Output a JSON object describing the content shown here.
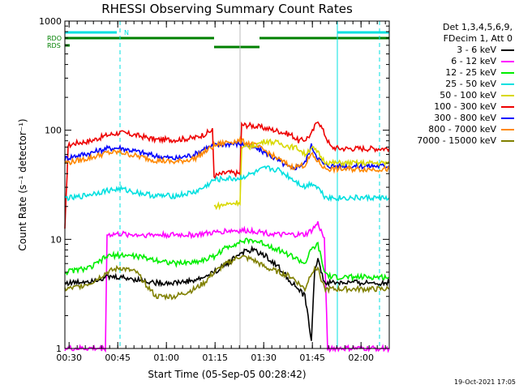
{
  "chart_data": {
    "type": "line",
    "title": "RHESSI Observing Summary Count Rates",
    "xlabel": "Start Time (05-Sep-05 00:28:42)",
    "ylabel": "Count Rate (s⁻¹ detector⁻¹)",
    "y_scale": "log",
    "ylim": [
      1,
      1000
    ],
    "xlim_minutes": [
      0,
      139
    ],
    "x_ticks": [
      {
        "label": "00:30",
        "minute": 1.3
      },
      {
        "label": "00:45",
        "minute": 16.3
      },
      {
        "label": "01:00",
        "minute": 31.3
      },
      {
        "label": "01:15",
        "minute": 46.3
      },
      {
        "label": "01:30",
        "minute": 61.3
      },
      {
        "label": "01:45",
        "minute": 76.3
      },
      {
        "label": "02:00",
        "minute": 91.3
      }
    ],
    "y_ticks": [
      {
        "label": "1",
        "value": 1
      },
      {
        "label": "10",
        "value": 10
      },
      {
        "label": "100",
        "value": 100
      },
      {
        "label": "1000",
        "value": 1000
      }
    ],
    "legend_header": [
      "Det 1,3,4,5,6,9,",
      "FDecim 1, Att 0"
    ],
    "legend": [
      {
        "label": "3 - 6 keV",
        "color": "#000000"
      },
      {
        "label": "6 - 12 keV",
        "color": "#ff00ff"
      },
      {
        "label": "12 - 25 keV",
        "color": "#00ee00"
      },
      {
        "label": "25 - 50 keV",
        "color": "#00e0e0"
      },
      {
        "label": "50 - 100 keV",
        "color": "#d8d800"
      },
      {
        "label": "100 - 300 keV",
        "color": "#ee0000"
      },
      {
        "label": "300 - 800 keV",
        "color": "#0000ff"
      },
      {
        "label": "800 - 7000 keV",
        "color": "#ff8800"
      },
      {
        "label": "7000 - 15000 keV",
        "color": "#808000"
      }
    ],
    "flags": [
      {
        "label": "N",
        "color": "#00e0e0",
        "segments": [
          [
            0,
            16
          ],
          [
            84,
            100
          ]
        ]
      },
      {
        "label": "RDO",
        "color": "#008000",
        "segments": [
          [
            0,
            46
          ],
          [
            60,
            100
          ]
        ]
      },
      {
        "label": "RDS",
        "color": "#008000",
        "segments": [
          [
            0,
            1.5
          ]
        ]
      }
    ],
    "flag_extra": [
      {
        "color": "#008000",
        "segments": [
          [
            46,
            60
          ]
        ]
      }
    ],
    "boundaries_cyan_solid": [
      0,
      84
    ],
    "boundaries_cyan_dashed": [
      17,
      97
    ],
    "boundary_grey": [
      54
    ],
    "series": [
      {
        "name": "100 - 300 keV",
        "color": "#ee0000",
        "x": [
          0,
          1,
          3,
          8,
          13,
          17,
          22,
          28,
          34,
          40,
          43,
          45.5,
          46,
          50,
          54,
          54.5,
          58,
          62,
          66,
          70,
          72,
          74,
          76,
          78,
          82,
          85,
          87,
          88,
          90,
          92,
          95,
          97,
          100
        ],
        "y": [
          12,
          72,
          76,
          80,
          90,
          95,
          90,
          82,
          82,
          85,
          92,
          100,
          38,
          41,
          40,
          112,
          110,
          104,
          98,
          90,
          80,
          82,
          92,
          125,
          70,
          68,
          68,
          68,
          68,
          68,
          68,
          68,
          68
        ]
      },
      {
        "name": "300 - 800 keV",
        "color": "#0000ff",
        "x": [
          0,
          3,
          8,
          13,
          17,
          22,
          28,
          34,
          40,
          43,
          46,
          50,
          54,
          58,
          62,
          66,
          70,
          74,
          76,
          78,
          80,
          82,
          86,
          90,
          95,
          100
        ],
        "y": [
          55,
          58,
          62,
          68,
          69,
          64,
          58,
          55,
          60,
          68,
          72,
          75,
          75,
          70,
          62,
          52,
          44,
          50,
          72,
          56,
          48,
          47,
          47,
          47,
          47,
          47
        ]
      },
      {
        "name": "800 - 7000 keV",
        "color": "#ff8800",
        "x": [
          0,
          3,
          8,
          13,
          17,
          22,
          28,
          34,
          40,
          43,
          46,
          50,
          54,
          58,
          62,
          66,
          70,
          74,
          76,
          78,
          80,
          82,
          86,
          90,
          95,
          100
        ],
        "y": [
          50,
          52,
          56,
          62,
          63,
          58,
          53,
          51,
          55,
          63,
          72,
          78,
          80,
          74,
          64,
          54,
          46,
          48,
          60,
          52,
          45,
          44,
          44,
          44,
          44,
          44
        ]
      },
      {
        "name": "50 - 100 keV",
        "color": "#d8d800",
        "x": [
          46,
          50,
          54,
          54.5,
          58,
          62,
          66,
          70,
          72,
          74,
          76,
          78,
          80,
          82,
          86,
          90,
          95,
          100
        ],
        "y": [
          20,
          21,
          22,
          68,
          72,
          80,
          76,
          70,
          68,
          60,
          70,
          62,
          52,
          50,
          50,
          50,
          50,
          50
        ]
      },
      {
        "name": "25 - 50 keV",
        "color": "#00e0e0",
        "x": [
          0,
          3,
          8,
          13,
          17,
          22,
          28,
          34,
          40,
          43,
          46,
          50,
          54,
          54.5,
          58,
          62,
          66,
          70,
          74,
          76,
          78,
          80,
          82,
          86,
          90,
          95,
          100
        ],
        "y": [
          24,
          24,
          26,
          28,
          29,
          27,
          25,
          25,
          27,
          30,
          35,
          36,
          36,
          37,
          40,
          45,
          43,
          36,
          30,
          33,
          30,
          25,
          24,
          24,
          24,
          24,
          24
        ]
      },
      {
        "name": "6 - 12 keV",
        "color": "#ff00ff",
        "x": [
          0,
          12,
          12.5,
          13,
          17,
          22,
          28,
          34,
          40,
          46,
          50,
          54,
          58,
          62,
          66,
          70,
          74,
          76,
          78,
          80,
          81,
          82,
          100
        ],
        "y": [
          1,
          1,
          1,
          11,
          11.2,
          11,
          11,
          11,
          11,
          11.5,
          12,
          12,
          12,
          11.5,
          11,
          11,
          11,
          12,
          14,
          10,
          1,
          1,
          1
        ]
      },
      {
        "name": "12 - 25 keV",
        "color": "#00ee00",
        "x": [
          0,
          3,
          8,
          13,
          17,
          22,
          28,
          34,
          40,
          43,
          46,
          50,
          54,
          58,
          62,
          66,
          70,
          74,
          76,
          78,
          80,
          82,
          86,
          90,
          95,
          100
        ],
        "y": [
          5,
          5.2,
          5.5,
          7,
          7.2,
          7,
          6.5,
          6,
          6.2,
          6.5,
          7,
          8.5,
          9.5,
          9.8,
          9,
          8,
          7,
          6,
          8,
          9,
          5,
          4.5,
          4.5,
          4.5,
          4.5,
          4.5
        ]
      },
      {
        "name": "3 - 6 keV",
        "color": "#000000",
        "x": [
          0,
          3,
          8,
          13,
          17,
          22,
          28,
          34,
          40,
          43,
          46,
          50,
          54,
          58,
          62,
          66,
          70,
          74,
          76,
          77,
          78,
          79,
          80,
          82,
          86,
          90,
          95,
          100
        ],
        "y": [
          4,
          4,
          4.2,
          4.5,
          4.5,
          4.3,
          4,
          4,
          4.2,
          4.5,
          5,
          6,
          7.5,
          8,
          7,
          5.5,
          4,
          3,
          1.2,
          5,
          7,
          5,
          4,
          4,
          4,
          4,
          4,
          4
        ]
      },
      {
        "name": "7000 - 15000 keV",
        "color": "#808000",
        "x": [
          0,
          3,
          8,
          13,
          17,
          22,
          28,
          34,
          40,
          43,
          46,
          50,
          54,
          58,
          62,
          66,
          70,
          74,
          76,
          78,
          80,
          82,
          86,
          90,
          95,
          100
        ],
        "y": [
          3.5,
          3.6,
          4,
          5,
          5.5,
          5,
          3,
          3,
          3.5,
          4,
          5,
          6,
          7,
          6.5,
          5.5,
          5,
          4.5,
          3.5,
          5,
          5.5,
          3.5,
          3.5,
          3.5,
          3.5,
          3.5,
          3.5
        ]
      }
    ]
  },
  "footer": {
    "timestamp": "19-Oct-2021 17:05"
  }
}
